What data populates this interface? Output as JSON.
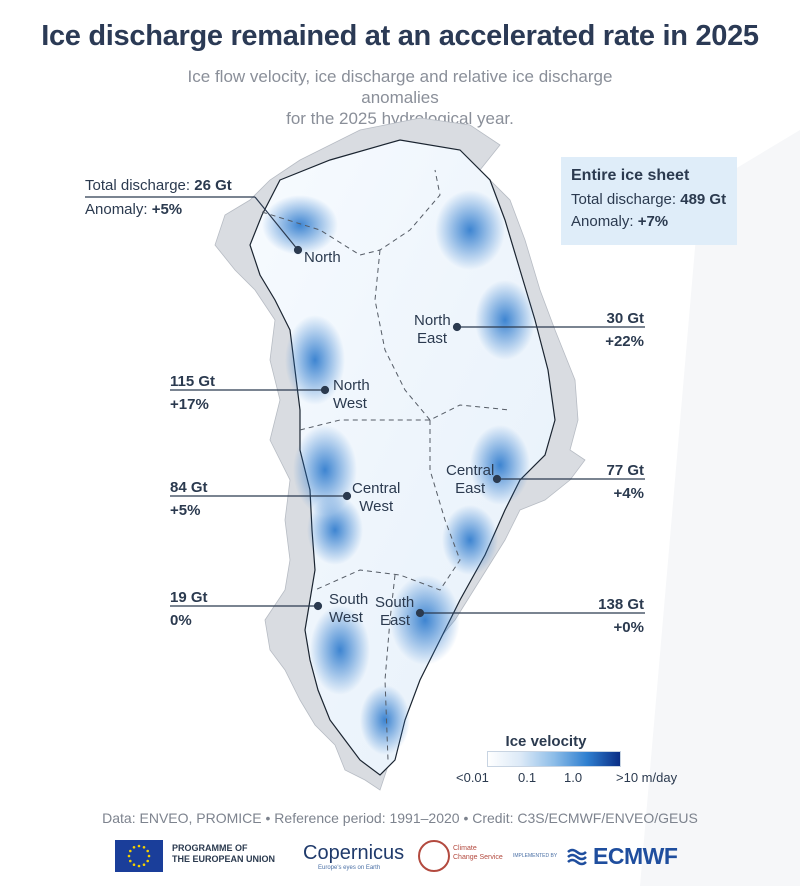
{
  "title": "Ice discharge remained at an accelerated rate in 2025",
  "subtitle_line1": "Ice flow velocity, ice discharge and relative ice discharge anomalies",
  "subtitle_line2": "for the 2025 hydrological year.",
  "entire_sheet": {
    "heading": "Entire ice sheet",
    "discharge_prefix": "Total discharge: ",
    "discharge_value": "489 Gt",
    "anomaly_prefix": "Anomaly: ",
    "anomaly_value": "+7%"
  },
  "regions": {
    "north": {
      "name": "North",
      "discharge_prefix": "Total discharge: ",
      "discharge": "26 Gt",
      "anomaly_prefix": "Anomaly: ",
      "anomaly": "+5%"
    },
    "north_east": {
      "name_line1": "North",
      "name_line2": "East",
      "discharge": "30 Gt",
      "anomaly": "+22%"
    },
    "north_west": {
      "name_line1": "North",
      "name_line2": "West",
      "discharge": "115 Gt",
      "anomaly": "+17%"
    },
    "central_east": {
      "name_line1": "Central",
      "name_line2": "East",
      "discharge": "77 Gt",
      "anomaly": "+4%"
    },
    "central_west": {
      "name_line1": "Central",
      "name_line2": "West",
      "discharge": "84 Gt",
      "anomaly": "+5%"
    },
    "south_west": {
      "name_line1": "South",
      "name_line2": "West",
      "discharge": "19 Gt",
      "anomaly": "0%"
    },
    "south_east": {
      "name_line1": "South",
      "name_line2": "East",
      "discharge": "138 Gt",
      "anomaly": "+0%"
    }
  },
  "legend": {
    "title": "Ice velocity",
    "ticks": [
      "<0.01",
      "0.1",
      "1.0",
      ">10 m/day"
    ],
    "colors": [
      "#ffffff",
      "#8dbde8",
      "#2f7fd0",
      "#0a2e86"
    ]
  },
  "credit": "Data: ENVEO, PROMICE • Reference period: 1991–2020 • Credit: C3S/ECMWF/ENVEO/GEUS",
  "logos": {
    "eu_line1": "PROGRAMME OF",
    "eu_line2": "THE EUROPEAN UNION",
    "copernicus": "Copernicus",
    "copernicus_tagline": "Europe's eyes on Earth",
    "c3s_line1": "Climate",
    "c3s_line2": "Change Service",
    "implemented_by": "IMPLEMENTED BY",
    "ecmwf": "ECMWF"
  }
}
